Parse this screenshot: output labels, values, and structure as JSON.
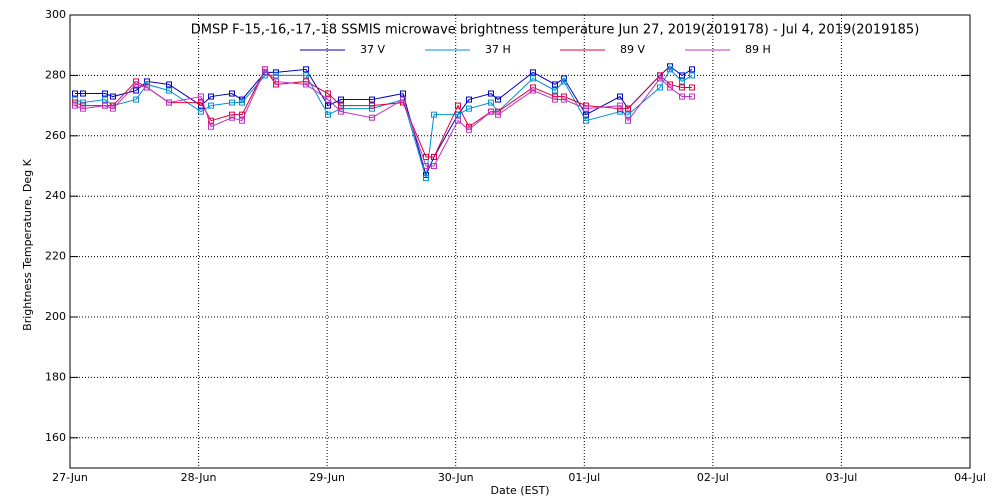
{
  "chart_data": {
    "type": "line",
    "title": "DMSP F-15,-16,-17,-18 SSMIS microwave brightness temperature Jun 27, 2019(2019178) - Jul  4, 2019(2019185)",
    "x_label": "Date (EST)",
    "y_label": "Brightness Temperature, Deg K",
    "x": [
      0.039,
      0.101,
      0.272,
      0.334,
      0.513,
      0.599,
      0.77,
      1.019,
      1.097,
      1.26,
      1.338,
      1.517,
      1.602,
      1.836,
      2.007,
      2.108,
      2.349,
      2.59,
      2.769,
      2.831,
      3.018,
      3.103,
      3.274,
      3.329,
      3.601,
      3.772,
      3.842,
      4.013,
      4.278,
      4.34,
      4.589,
      4.667,
      4.76,
      4.838
    ],
    "series": [
      {
        "name": "37 V",
        "color": "#0000c0",
        "values": [
          274,
          274,
          274,
          273,
          275,
          278,
          277,
          270,
          273,
          274,
          272,
          281,
          281,
          282,
          270,
          272,
          272,
          274,
          247,
          253,
          267,
          272,
          274,
          272,
          281,
          277,
          279,
          267,
          273,
          269,
          280,
          283,
          280,
          282
        ]
      },
      {
        "name": "37 H",
        "color": "#0090d0",
        "values": [
          272,
          271,
          272,
          270,
          272,
          277,
          275,
          268,
          270,
          271,
          271,
          280,
          280,
          280,
          267,
          269,
          269,
          272,
          246,
          267,
          267,
          269,
          271,
          268,
          279,
          275,
          278,
          265,
          268,
          267,
          276,
          282,
          278,
          280
        ]
      },
      {
        "name": "89 V",
        "color": "#e0003c",
        "values": [
          271,
          270,
          270,
          270,
          278,
          276,
          271,
          271,
          265,
          267,
          267,
          282,
          277,
          278,
          274,
          270,
          270,
          271,
          253,
          253,
          270,
          263,
          268,
          268,
          276,
          273,
          273,
          270,
          269,
          269,
          280,
          277,
          276,
          276
        ]
      },
      {
        "name": "89 H",
        "color": "#c030c0",
        "values": [
          270,
          269,
          270,
          269,
          277,
          276,
          271,
          273,
          263,
          266,
          265,
          282,
          278,
          277,
          272,
          268,
          266,
          272,
          250,
          250,
          265,
          262,
          268,
          267,
          275,
          272,
          272,
          269,
          270,
          265,
          279,
          276,
          273,
          273
        ]
      }
    ],
    "xlim": [
      0,
      7
    ],
    "xticks": [
      {
        "value": 0,
        "label": "27-Jun"
      },
      {
        "value": 1,
        "label": "28-Jun"
      },
      {
        "value": 2,
        "label": "29-Jun"
      },
      {
        "value": 3,
        "label": "30-Jun"
      },
      {
        "value": 4,
        "label": "01-Jul"
      },
      {
        "value": 5,
        "label": "02-Jul"
      },
      {
        "value": 6,
        "label": "03-Jul"
      },
      {
        "value": 7,
        "label": "04-Jul"
      }
    ],
    "ylim": [
      150,
      300
    ],
    "yticks": [
      160,
      180,
      200,
      220,
      240,
      260,
      280,
      300
    ],
    "grid": true
  }
}
